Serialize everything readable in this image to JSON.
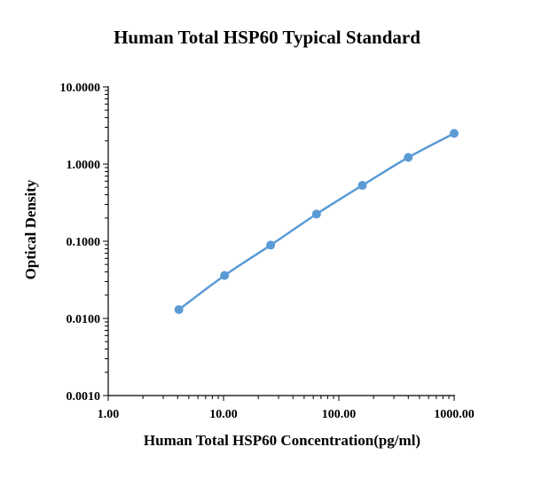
{
  "chart_data": {
    "type": "line",
    "title": "Human Total HSP60 Typical Standard",
    "xlabel": "Human Total HSP60 Concentration(pg/ml)",
    "ylabel": "Optical Density",
    "x_scale": "log",
    "y_scale": "log",
    "xlim": [
      1,
      1000
    ],
    "ylim": [
      0.001,
      10
    ],
    "x_ticks": [
      "1.00",
      "10.00",
      "100.00",
      "1000.00"
    ],
    "y_ticks": [
      "0.0010",
      "0.0100",
      "0.1000",
      "1.0000",
      "10.0000"
    ],
    "grid": false,
    "series": [
      {
        "color": "#5B9BD5",
        "x": [
          4.1,
          10.2,
          25.6,
          64,
          160,
          400,
          1000
        ],
        "y": [
          0.013,
          0.036,
          0.089,
          0.225,
          0.53,
          1.22,
          2.5
        ]
      }
    ]
  }
}
